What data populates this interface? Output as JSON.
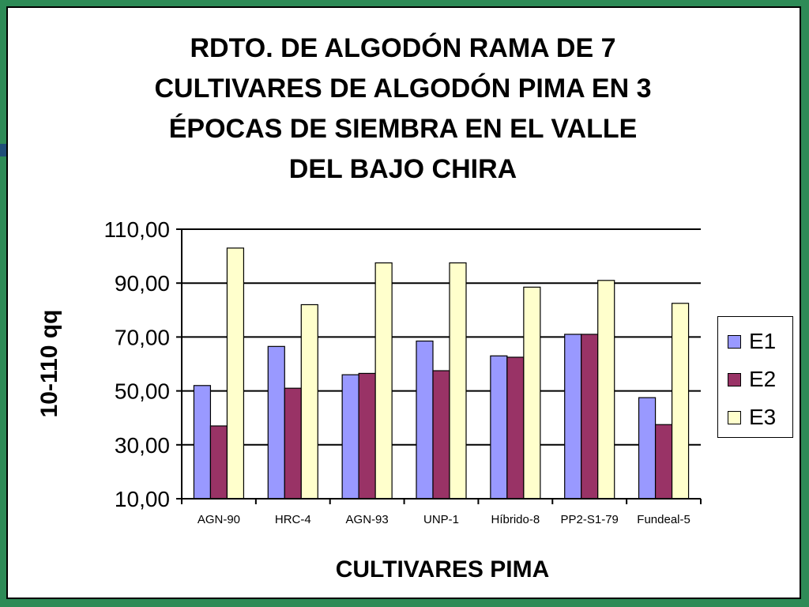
{
  "chart_data": {
    "type": "bar",
    "title_lines": [
      "RDTO. DE ALGODÓN RAMA DE 7",
      "CULTIVARES DE ALGODÓN PIMA EN 3",
      "ÉPOCAS DE SIEMBRA EN EL VALLE",
      "DEL BAJO CHIRA"
    ],
    "xlabel": "CULTIVARES  PIMA",
    "ylabel": "10-110 qq",
    "categories": [
      "AGN-90",
      "HRC-4",
      "AGN-93",
      "UNP-1",
      "Híbrido-8",
      "PP2-S1-79",
      "Fundeal-5"
    ],
    "series": [
      {
        "name": "E1",
        "color": "#9999ff",
        "values": [
          52,
          66.5,
          56,
          68.5,
          63,
          71,
          47.5
        ]
      },
      {
        "name": "E2",
        "color": "#993366",
        "values": [
          37,
          51,
          56.5,
          57.5,
          62.5,
          71,
          37.5
        ]
      },
      {
        "name": "E3",
        "color": "#ffffcc",
        "values": [
          103,
          82,
          97.5,
          97.5,
          88.5,
          91,
          82.5
        ]
      }
    ],
    "ylim": [
      10,
      110
    ],
    "yticks": [
      "10,00",
      "30,00",
      "50,00",
      "70,00",
      "90,00",
      "110,00"
    ],
    "grid": true,
    "legend_position": "right"
  }
}
